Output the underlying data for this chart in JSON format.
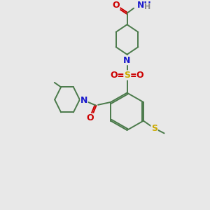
{
  "background_color": "#e8e8e8",
  "C": "#4a7a4a",
  "N": "#1a1acc",
  "O": "#cc0000",
  "S": "#ccaa00",
  "H": "#888888",
  "bond_color": "#4a7a4a",
  "figsize": [
    3.0,
    3.0
  ],
  "dpi": 100,
  "xlim": [
    0,
    10
  ],
  "ylim": [
    0,
    10
  ]
}
